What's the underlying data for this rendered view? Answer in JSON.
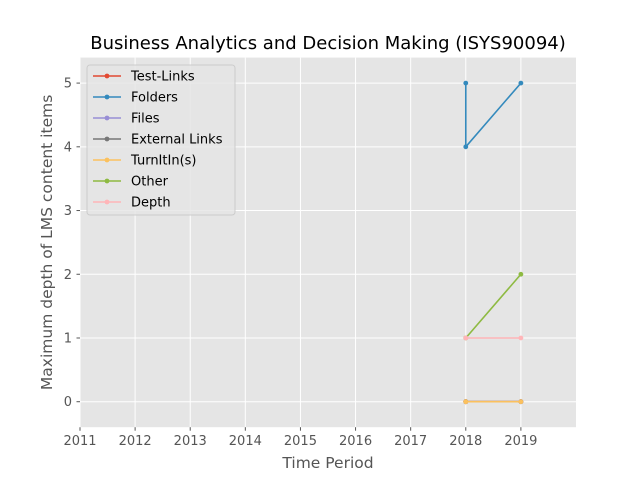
{
  "chart_data": {
    "type": "line",
    "title": "Business Analytics and Decision Making (ISYS90094)",
    "xlabel": "Time Period",
    "ylabel": "Maximum depth of LMS content items",
    "xlim": [
      2011,
      2020
    ],
    "ylim": [
      -0.4,
      5.4
    ],
    "xticks": [
      2011,
      2012,
      2013,
      2014,
      2015,
      2016,
      2017,
      2018,
      2019
    ],
    "xtick_labels": [
      "2011",
      "2012",
      "2013",
      "2014",
      "2015",
      "2016",
      "2017",
      "2018",
      "2019"
    ],
    "yticks": [
      0,
      1,
      2,
      3,
      4,
      5
    ],
    "ytick_labels": [
      "0",
      "1",
      "2",
      "3",
      "4",
      "5"
    ],
    "grid": true,
    "legend_position": "top-left",
    "series": [
      {
        "name": "Test-Links",
        "color": "#E24A33",
        "points": [
          [
            2018,
            0
          ],
          [
            2018,
            0
          ],
          [
            2019,
            0
          ]
        ]
      },
      {
        "name": "Folders",
        "color": "#348ABD",
        "points": [
          [
            2018,
            5
          ],
          [
            2018,
            4
          ],
          [
            2019,
            5
          ]
        ]
      },
      {
        "name": "Files",
        "color": "#988ED5",
        "points": [
          [
            2018,
            0
          ],
          [
            2018,
            0
          ],
          [
            2019,
            0
          ]
        ]
      },
      {
        "name": "External Links",
        "color": "#777777",
        "points": [
          [
            2018,
            0
          ],
          [
            2018,
            0
          ],
          [
            2019,
            0
          ]
        ]
      },
      {
        "name": "TurnItIn(s)",
        "color": "#FBC15E",
        "points": [
          [
            2018,
            0
          ],
          [
            2018,
            0
          ],
          [
            2019,
            0
          ]
        ]
      },
      {
        "name": "Other",
        "color": "#8EBA42",
        "points": [
          [
            2018,
            1
          ],
          [
            2018,
            1
          ],
          [
            2019,
            2
          ]
        ]
      },
      {
        "name": "Depth",
        "color": "#FFB5B8",
        "points": [
          [
            2018,
            1
          ],
          [
            2018,
            1
          ],
          [
            2019,
            1
          ]
        ]
      }
    ]
  }
}
